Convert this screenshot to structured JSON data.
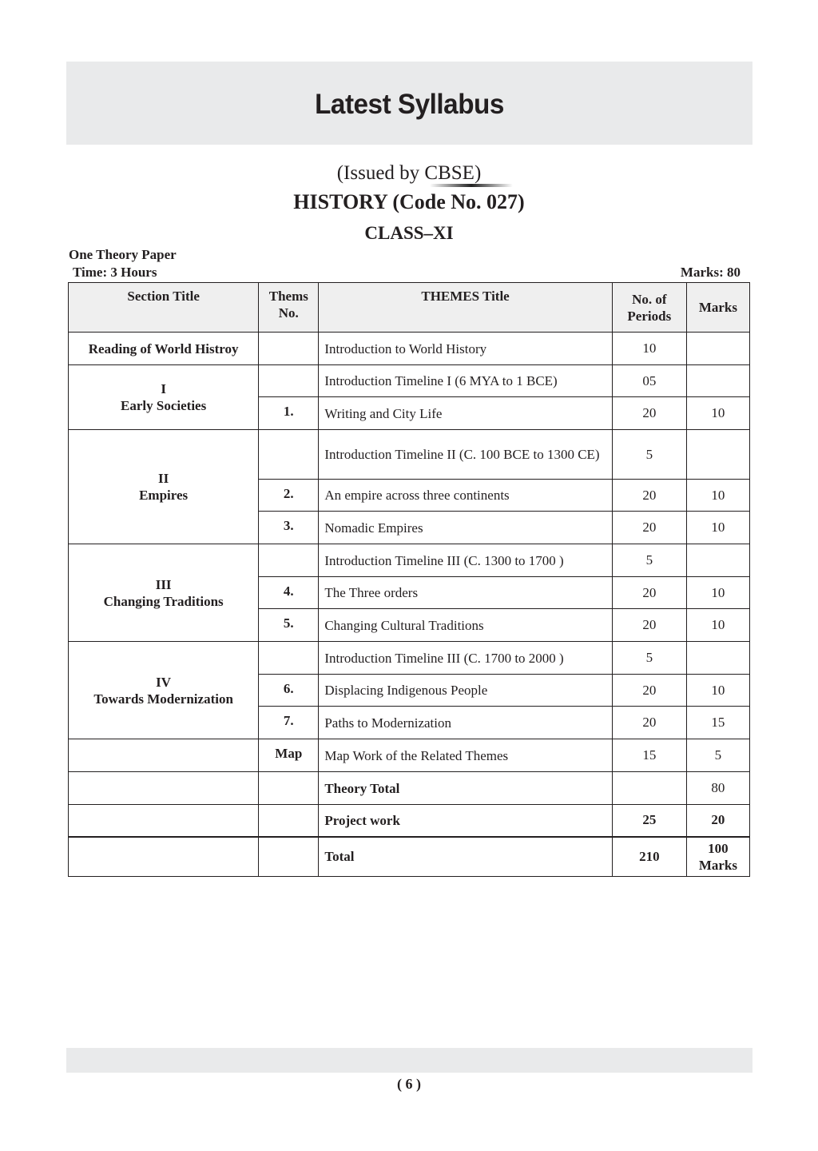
{
  "header": {
    "title": "Latest Syllabus"
  },
  "issued_by": "(Issued by CBSE)",
  "subject": "HISTORY (Code No. 027)",
  "class": "CLASS–XI",
  "paper": "One Theory Paper",
  "time": "Time: 3 Hours",
  "marks": "Marks: 80",
  "table": {
    "headers": [
      "Section Title",
      "Thems No.",
      "THEMES Title",
      "No. of Periods",
      "Marks"
    ],
    "sections": [
      "Reading of World Histroy",
      "I\nEarly Societies",
      "II\nEmpires",
      "III\nChanging Traditions",
      "IV\nTowards Modernization"
    ],
    "rows": [
      {
        "no": "",
        "title": "Introduction to World History",
        "periods": "10",
        "marks": ""
      },
      {
        "no": "",
        "title": "Introduction Timeline I (6 MYA to 1 BCE)",
        "periods": "05",
        "marks": ""
      },
      {
        "no": "1.",
        "title": "Writing and City Life",
        "periods": "20",
        "marks": "10"
      },
      {
        "no": "",
        "title": "Introduction Timeline II (C. 100 BCE to 1300 CE)",
        "periods": "5",
        "marks": ""
      },
      {
        "no": "2.",
        "title": "An empire across three continents",
        "periods": "20",
        "marks": "10"
      },
      {
        "no": "3.",
        "title": "Nomadic Empires",
        "periods": "20",
        "marks": "10"
      },
      {
        "no": "",
        "title": "Introduction Timeline III (C. 1300 to 1700 )",
        "periods": "5",
        "marks": ""
      },
      {
        "no": "4.",
        "title": "The Three orders",
        "periods": "20",
        "marks": "10"
      },
      {
        "no": "5.",
        "title": "Changing Cultural Traditions",
        "periods": "20",
        "marks": "10"
      },
      {
        "no": "",
        "title": "Introduction Timeline III (C. 1700 to 2000 )",
        "periods": "5",
        "marks": ""
      },
      {
        "no": "6.",
        "title": "Displacing Indigenous People",
        "periods": "20",
        "marks": "10"
      },
      {
        "no": "7.",
        "title": "Paths to Modernization",
        "periods": "20",
        "marks": "15"
      },
      {
        "no": "Map",
        "title": "Map Work of the Related Themes",
        "periods": "15",
        "marks": "5"
      },
      {
        "no": "",
        "title": "Theory Total",
        "periods": "",
        "marks": "80"
      },
      {
        "no": "",
        "title": "Project work",
        "periods": "25",
        "marks": "20"
      },
      {
        "no": "",
        "title": "Total",
        "periods": "210",
        "marks": "100 Marks"
      }
    ]
  },
  "footer": {
    "page_number": "( 6 )"
  }
}
